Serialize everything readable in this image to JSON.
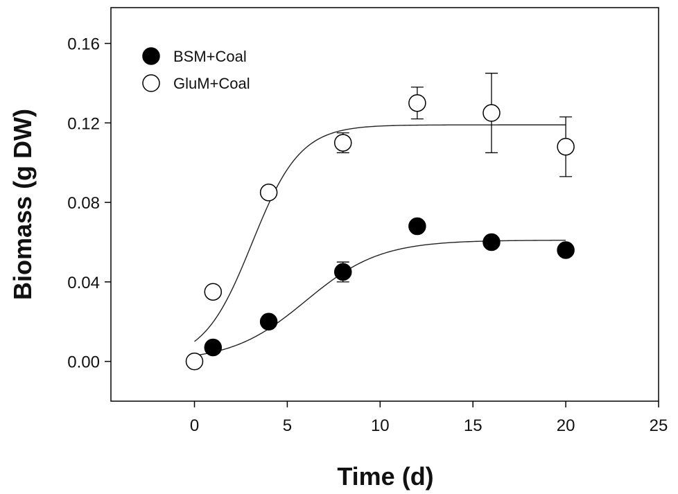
{
  "chart_data": {
    "type": "scatter",
    "xlabel": "Time (d)",
    "ylabel": "Biomass (g DW)",
    "xlim": [
      -4.5,
      25
    ],
    "ylim": [
      -0.02,
      0.178
    ],
    "xticks": [
      0,
      5,
      10,
      15,
      20,
      25
    ],
    "xtick_labels": [
      "0",
      "5",
      "10",
      "15",
      "20",
      "25"
    ],
    "yticks": [
      0.0,
      0.04,
      0.08,
      0.12,
      0.16
    ],
    "ytick_labels": [
      "0.00",
      "0.04",
      "0.08",
      "0.12",
      "0.16"
    ],
    "grid": false,
    "legend": "top-left",
    "series": [
      {
        "name": "BSM+Coal",
        "marker": "filled-circle",
        "color": "#000000",
        "x": [
          1,
          4,
          8,
          12,
          16,
          20
        ],
        "y": [
          0.007,
          0.02,
          0.045,
          0.068,
          0.06,
          0.056
        ],
        "error": [
          0,
          0,
          0.005,
          0,
          0,
          0
        ],
        "fit_curve": {
          "model": "sigmoid",
          "top": 0.061,
          "x0": 6.0,
          "slope": 2.0,
          "x_range": [
            0,
            20
          ]
        }
      },
      {
        "name": "GluM+Coal",
        "marker": "open-circle",
        "color": "#000000",
        "x": [
          0,
          1,
          4,
          8,
          12,
          16,
          20
        ],
        "y": [
          0.0,
          0.035,
          0.085,
          0.11,
          0.13,
          0.125,
          0.108
        ],
        "error": [
          0,
          0,
          0,
          0.005,
          0.008,
          0.02,
          0.015
        ],
        "fit_curve": {
          "model": "sigmoid",
          "top": 0.119,
          "x0": 3.1,
          "slope": 1.3,
          "x_range": [
            0,
            20
          ]
        }
      }
    ]
  }
}
